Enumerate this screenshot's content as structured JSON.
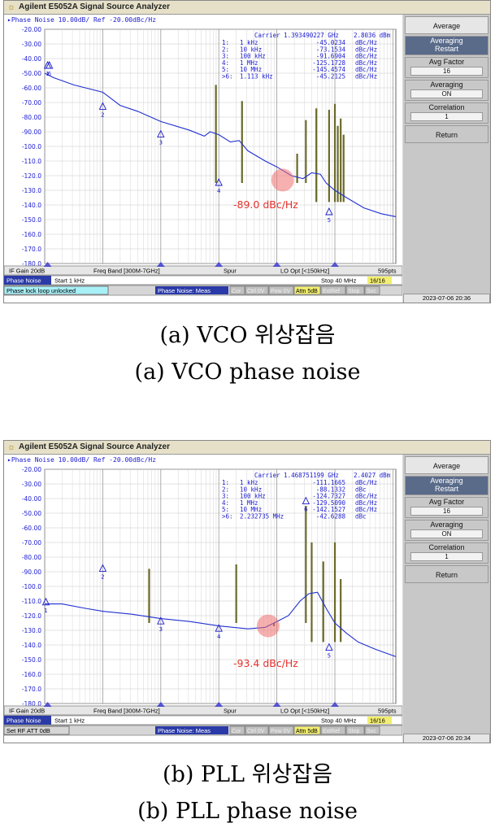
{
  "panels": [
    {
      "id": "a1",
      "title": "Agilent E5052A Signal Source Analyzer",
      "trace_header": "Phase Noise 10.00dB/ Ref -20.00dBc/Hz",
      "carrier_text": "Carrier 1.393490227 GHz",
      "carrier_power": "2.8036 dBm",
      "markers": [
        {
          "num": "1:",
          "offset": "1 kHz",
          "value": "-45.0234",
          "unit": "dBc/Hz"
        },
        {
          "num": "2:",
          "offset": "10 kHz",
          "value": "-73.1534",
          "unit": "dBc/Hz"
        },
        {
          "num": "3:",
          "offset": "100 kHz",
          "value": "-91.6904",
          "unit": "dBc/Hz"
        },
        {
          "num": "4:",
          "offset": "1 MHz",
          "value": "-125.1728",
          "unit": "dBc/Hz"
        },
        {
          "num": "5:",
          "offset": "10 MHz",
          "value": "-145.4574",
          "unit": "dBc/Hz"
        },
        {
          "num": ">6:",
          "offset": "1.113 kHz",
          "value": "-45.2125",
          "unit": "dBc/Hz"
        }
      ],
      "y_ticks": [
        "-20.00",
        "-30.00",
        "-40.00",
        "-50.00",
        "-60.00",
        "-70.00",
        "-80.00",
        "-90.00",
        "-100.0",
        "-110.0",
        "-120.0",
        "-130.0",
        "-140.0",
        "-150.0",
        "-160.0",
        "-170.0",
        "-180.0"
      ],
      "annotation": "-89.0 dBc/Hz",
      "bottom_bar": [
        "IF Gain 20dB",
        "Freq Band [300M-7GHz]",
        "Spur",
        "LO Opt [<150kHz]",
        "595pts"
      ],
      "status_bar": {
        "mode": "Phase Noise",
        "start": "Start 1 kHz",
        "stop": "Stop 40 MHz",
        "count": "16/16"
      },
      "info_bar": {
        "message": "Phase lock loop unlocked",
        "meas": "Phase Noise: Meas",
        "indicators": [
          "Cor",
          "Ctrl 0V",
          "Pow 0V",
          "Attn 5dB",
          "ExtRef",
          "Stop",
          "Svc"
        ],
        "datetime": "2023-07-06 20:36"
      },
      "softkeys": {
        "avg": "Average",
        "averaging": "Averaging",
        "restart": "Restart",
        "avg_factor": "Avg Factor",
        "avg_factor_val": "16",
        "averaging2": "Averaging",
        "averaging_val": "ON",
        "correlation": "Correlation",
        "correlation_val": "1",
        "return": "Return"
      },
      "trace": [
        [
          0,
          -50
        ],
        [
          0.15,
          -53
        ],
        [
          0.5,
          -58
        ],
        [
          1,
          -63
        ],
        [
          1.3,
          -72
        ],
        [
          1.6,
          -76
        ],
        [
          2,
          -83
        ],
        [
          2.5,
          -89
        ],
        [
          2.75,
          -93
        ],
        [
          2.85,
          -90
        ],
        [
          3.0,
          -92
        ],
        [
          3.2,
          -97
        ],
        [
          3.35,
          -96
        ],
        [
          3.5,
          -103
        ],
        [
          3.8,
          -110
        ],
        [
          4.0,
          -114
        ],
        [
          4.25,
          -120
        ],
        [
          4.45,
          -122
        ],
        [
          4.6,
          -118
        ],
        [
          4.75,
          -119
        ],
        [
          4.85,
          -125
        ],
        [
          5.0,
          -130
        ],
        [
          5.2,
          -135
        ],
        [
          5.5,
          -142
        ],
        [
          5.8,
          -146
        ],
        [
          6.05,
          -148
        ]
      ],
      "spurs": [
        [
          2.95,
          -58
        ],
        [
          3.4,
          -69
        ],
        [
          4.35,
          -105
        ],
        [
          4.5,
          -82
        ],
        [
          4.68,
          -74
        ],
        [
          4.9,
          -75
        ],
        [
          5.0,
          -71
        ],
        [
          5.05,
          -86
        ],
        [
          5.1,
          -81
        ],
        [
          5.15,
          -92
        ]
      ],
      "circle": [
        4.1,
        -123
      ],
      "marker_pts": [
        [
          0.05,
          -45
        ],
        [
          1.0,
          -73
        ],
        [
          2.0,
          -92
        ],
        [
          3.0,
          -125
        ],
        [
          4.9,
          -145
        ],
        [
          0.08,
          -45
        ]
      ]
    },
    {
      "id": "a2",
      "title": "Agilent E5052A Signal Source Analyzer",
      "trace_header": "Phase Noise 10.00dB/ Ref -20.00dBc/Hz",
      "carrier_text": "Carrier 1.468751199 GHz",
      "carrier_power": "2.4027 dBm",
      "markers": [
        {
          "num": "1:",
          "offset": "1 kHz",
          "value": "-111.1665",
          "unit": "dBc/Hz"
        },
        {
          "num": "2:",
          "offset": "10 kHz",
          "value": "-88.1332",
          "unit": "dBc"
        },
        {
          "num": "3:",
          "offset": "100 kHz",
          "value": "-124.7327",
          "unit": "dBc/Hz"
        },
        {
          "num": "4:",
          "offset": "1 MHz",
          "value": "-129.5090",
          "unit": "dBc/Hz"
        },
        {
          "num": "5:",
          "offset": "10 MHz",
          "value": "-142.1527",
          "unit": "dBc/Hz"
        },
        {
          "num": ">6:",
          "offset": "2.232735 MHz",
          "value": "-42.6288",
          "unit": "dBc"
        }
      ],
      "y_ticks": [
        "-20.00",
        "-30.00",
        "-40.00",
        "-50.00",
        "-60.00",
        "-70.00",
        "-80.00",
        "-90.00",
        "-100.0",
        "-110.0",
        "-120.0",
        "-130.0",
        "-140.0",
        "-150.0",
        "-160.0",
        "-170.0",
        "-180.0"
      ],
      "annotation": "-93.4 dBc/Hz",
      "bottom_bar": [
        "IF Gain 20dB",
        "Freq Band [300M-7GHz]",
        "Spur",
        "LO Opt [<150kHz]",
        "595pts"
      ],
      "status_bar": {
        "mode": "Phase Noise",
        "start": "Start 1 kHz",
        "stop": "Stop 40 MHz",
        "count": "16/16"
      },
      "info_bar": {
        "message": "Set RF ATT 0dB",
        "meas": "Phase Noise: Meas",
        "indicators": [
          "Cor",
          "Ctrl 0V",
          "Pow 0V",
          "Attn 5dB",
          "ExtRef",
          "Stop",
          "Svc"
        ],
        "datetime": "2023-07-06 20:34"
      },
      "softkeys": {
        "avg": "Average",
        "averaging": "Averaging",
        "restart": "Restart",
        "avg_factor": "Avg Factor",
        "avg_factor_val": "16",
        "averaging2": "Averaging",
        "averaging_val": "ON",
        "correlation": "Correlation",
        "correlation_val": "1",
        "return": "Return"
      },
      "trace": [
        [
          0,
          -112
        ],
        [
          0.3,
          -112
        ],
        [
          0.7,
          -115
        ],
        [
          1.0,
          -117
        ],
        [
          1.5,
          -119
        ],
        [
          2.0,
          -122
        ],
        [
          2.5,
          -124
        ],
        [
          3.0,
          -127
        ],
        [
          3.5,
          -129
        ],
        [
          3.8,
          -128
        ],
        [
          4.0,
          -124
        ],
        [
          4.2,
          -120
        ],
        [
          4.4,
          -110
        ],
        [
          4.55,
          -105
        ],
        [
          4.7,
          -104
        ],
        [
          4.85,
          -115
        ],
        [
          5.0,
          -125
        ],
        [
          5.2,
          -132
        ],
        [
          5.4,
          -138
        ],
        [
          5.7,
          -143
        ],
        [
          6.05,
          -148
        ]
      ],
      "spurs": [
        [
          1.8,
          -88
        ],
        [
          3.3,
          -85
        ],
        [
          3.95,
          -125
        ],
        [
          4.5,
          -45
        ],
        [
          4.6,
          -70
        ],
        [
          4.8,
          -83
        ],
        [
          5.0,
          -70
        ],
        [
          5.1,
          -95
        ]
      ],
      "circle": [
        3.85,
        -127
      ],
      "marker_pts": [
        [
          0.02,
          -111
        ],
        [
          1.0,
          -88
        ],
        [
          2.0,
          -124
        ],
        [
          3.0,
          -129
        ],
        [
          4.9,
          -142
        ],
        [
          4.5,
          -42
        ]
      ]
    }
  ],
  "captions": {
    "a_ko": "(a) VCO 위상잡음",
    "a_en": "(a) VCO phase noise",
    "b_ko": "(b) PLL 위상잡음",
    "b_en": "(b) PLL phase noise"
  }
}
